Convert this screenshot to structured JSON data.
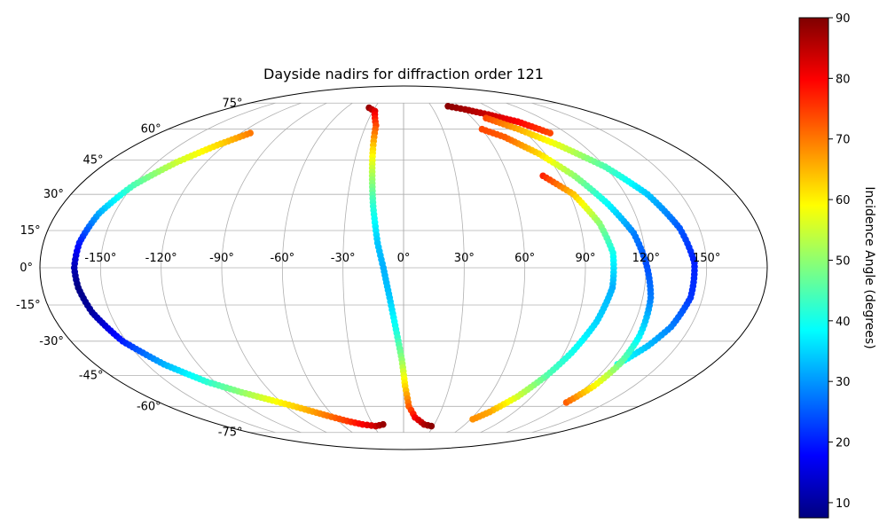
{
  "chart_data": {
    "type": "scatter",
    "projection": "mollweide",
    "title": "Dayside nadirs for diffraction order 121",
    "longitude_ticks": [
      -150,
      -120,
      -90,
      -60,
      -30,
      0,
      30,
      60,
      90,
      120,
      150
    ],
    "latitude_ticks": [
      -75,
      -60,
      -45,
      -30,
      -15,
      0,
      15,
      30,
      45,
      60,
      75
    ],
    "longitude_tick_labels": [
      "-150°",
      "-120°",
      "-90°",
      "-60°",
      "-30°",
      "0°",
      "30°",
      "60°",
      "90°",
      "120°",
      "150°"
    ],
    "latitude_tick_labels": [
      "-75°",
      "-60°",
      "-45°",
      "-30°",
      "-15°",
      "0°",
      "15°",
      "30°",
      "45°",
      "60°",
      "75°"
    ],
    "grid": true,
    "colormap": "jet",
    "colorbar": {
      "label": "Incidence Angle (degrees)",
      "range": [
        7.5,
        90
      ],
      "ticks": [
        10,
        20,
        30,
        40,
        50,
        60,
        70,
        80,
        90
      ],
      "placement": "right"
    },
    "tracks": [
      {
        "points": [
          {
            "lon": -113,
            "lat": 58,
            "angle": 70
          },
          {
            "lon": -125,
            "lat": 52,
            "angle": 62
          },
          {
            "lon": -138,
            "lat": 44,
            "angle": 55
          },
          {
            "lon": -150,
            "lat": 34,
            "angle": 45
          },
          {
            "lon": -158,
            "lat": 22,
            "angle": 32
          },
          {
            "lon": -162,
            "lat": 10,
            "angle": 20
          },
          {
            "lon": -163,
            "lat": 0,
            "angle": 12
          },
          {
            "lon": -162,
            "lat": -8,
            "angle": 8
          },
          {
            "lon": -159,
            "lat": -18,
            "angle": 10
          },
          {
            "lon": -152,
            "lat": -30,
            "angle": 20
          },
          {
            "lon": -140,
            "lat": -40,
            "angle": 32
          },
          {
            "lon": -125,
            "lat": -48,
            "angle": 42
          },
          {
            "lon": -110,
            "lat": -53,
            "angle": 50
          },
          {
            "lon": -95,
            "lat": -57,
            "angle": 58
          },
          {
            "lon": -80,
            "lat": -61,
            "angle": 64
          },
          {
            "lon": -65,
            "lat": -65,
            "angle": 70
          },
          {
            "lon": -52,
            "lat": -68,
            "angle": 75
          },
          {
            "lon": -40,
            "lat": -70,
            "angle": 80
          },
          {
            "lon": -28,
            "lat": -71,
            "angle": 84
          },
          {
            "lon": -20,
            "lat": -70,
            "angle": 88
          }
        ]
      },
      {
        "points": [
          {
            "lon": -36,
            "lat": 72,
            "angle": 88
          },
          {
            "lon": -28,
            "lat": 70,
            "angle": 82
          },
          {
            "lon": -22,
            "lat": 62,
            "angle": 74
          },
          {
            "lon": -20,
            "lat": 50,
            "angle": 62
          },
          {
            "lon": -18,
            "lat": 38,
            "angle": 52
          },
          {
            "lon": -16,
            "lat": 25,
            "angle": 42
          },
          {
            "lon": -13,
            "lat": 10,
            "angle": 34
          },
          {
            "lon": -10,
            "lat": 0,
            "angle": 32
          },
          {
            "lon": -7,
            "lat": -12,
            "angle": 34
          },
          {
            "lon": -4,
            "lat": -25,
            "angle": 40
          },
          {
            "lon": -1,
            "lat": -38,
            "angle": 50
          },
          {
            "lon": 1,
            "lat": -50,
            "angle": 62
          },
          {
            "lon": 4,
            "lat": -60,
            "angle": 72
          },
          {
            "lon": 10,
            "lat": -66,
            "angle": 80
          },
          {
            "lon": 20,
            "lat": -70,
            "angle": 86
          },
          {
            "lon": 28,
            "lat": -71,
            "angle": 89
          }
        ]
      },
      {
        "points": [
          {
            "lon": 48,
            "lat": 73,
            "angle": 89
          },
          {
            "lon": 62,
            "lat": 71,
            "angle": 87
          },
          {
            "lon": 78,
            "lat": 68,
            "angle": 84
          },
          {
            "lon": 95,
            "lat": 64,
            "angle": 80
          },
          {
            "lon": 108,
            "lat": 58,
            "angle": 74
          }
        ]
      },
      {
        "points": [
          {
            "lon": 72,
            "lat": 66,
            "angle": 74
          },
          {
            "lon": 88,
            "lat": 60,
            "angle": 66
          },
          {
            "lon": 104,
            "lat": 52,
            "angle": 57
          },
          {
            "lon": 120,
            "lat": 42,
            "angle": 45
          },
          {
            "lon": 132,
            "lat": 30,
            "angle": 34
          },
          {
            "lon": 140,
            "lat": 16,
            "angle": 25
          },
          {
            "lon": 144,
            "lat": 2,
            "angle": 20
          },
          {
            "lon": 144,
            "lat": -12,
            "angle": 22
          },
          {
            "lon": 140,
            "lat": -24,
            "angle": 28
          },
          {
            "lon": 134,
            "lat": -32,
            "angle": 33
          },
          {
            "lon": 125,
            "lat": -40,
            "angle": 40
          }
        ]
      },
      {
        "points": [
          {
            "lon": 80,
            "lat": 38,
            "angle": 77
          },
          {
            "lon": 92,
            "lat": 30,
            "angle": 64
          },
          {
            "lon": 100,
            "lat": 18,
            "angle": 50
          },
          {
            "lon": 104,
            "lat": 6,
            "angle": 40
          },
          {
            "lon": 104,
            "lat": -8,
            "angle": 32
          },
          {
            "lon": 100,
            "lat": -22,
            "angle": 35
          },
          {
            "lon": 94,
            "lat": -35,
            "angle": 40
          },
          {
            "lon": 88,
            "lat": -45,
            "angle": 45
          },
          {
            "lon": 80,
            "lat": -55,
            "angle": 55
          },
          {
            "lon": 70,
            "lat": -63,
            "angle": 66
          },
          {
            "lon": 62,
            "lat": -67,
            "angle": 68
          }
        ]
      },
      {
        "points": [
          {
            "lon": 120,
            "lat": -58,
            "angle": 72
          },
          {
            "lon": 124,
            "lat": -50,
            "angle": 60
          },
          {
            "lon": 126,
            "lat": -40,
            "angle": 48
          },
          {
            "lon": 126,
            "lat": -28,
            "angle": 38
          },
          {
            "lon": 124,
            "lat": -12,
            "angle": 28
          },
          {
            "lon": 120,
            "lat": 2,
            "angle": 24
          },
          {
            "lon": 116,
            "lat": 14,
            "angle": 28
          },
          {
            "lon": 108,
            "lat": 26,
            "angle": 38
          },
          {
            "lon": 98,
            "lat": 38,
            "angle": 50
          },
          {
            "lon": 86,
            "lat": 48,
            "angle": 62
          },
          {
            "lon": 72,
            "lat": 56,
            "angle": 72
          },
          {
            "lon": 60,
            "lat": 60,
            "angle": 74
          }
        ]
      }
    ]
  }
}
